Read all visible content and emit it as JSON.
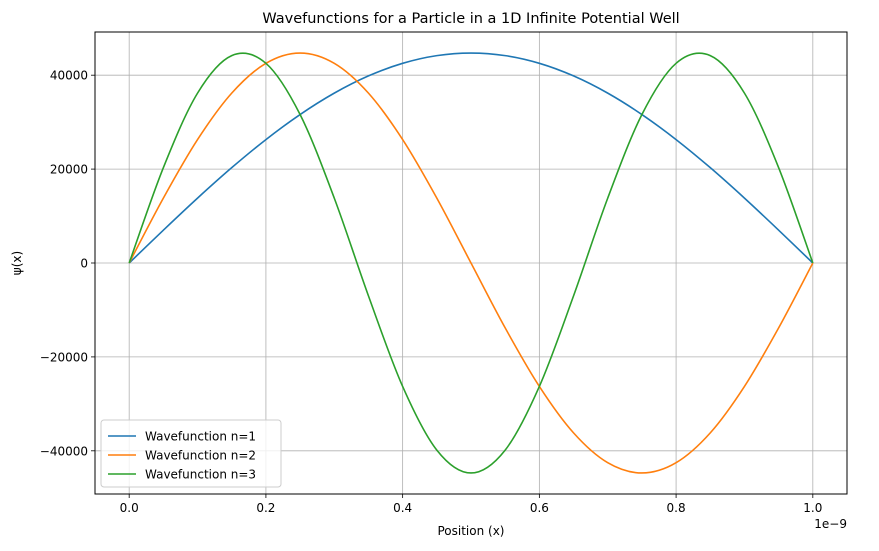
{
  "chart_data": {
    "type": "line",
    "title": "Wavefunctions for a Particle in a 1D Infinite Potential Well",
    "xlabel": "Position (x)",
    "ylabel": "ψ(x)",
    "x_offset_label": "1e−9",
    "x_scale": 1e-09,
    "xlim": [
      -0.05,
      1.05
    ],
    "ylim": [
      -49200,
      49200
    ],
    "x_ticks": [
      0.0,
      0.2,
      0.4,
      0.6,
      0.8,
      1.0
    ],
    "x_tick_labels": [
      "0.0",
      "0.2",
      "0.4",
      "0.6",
      "0.8",
      "1.0"
    ],
    "y_ticks": [
      -40000,
      -20000,
      0,
      20000,
      40000
    ],
    "y_tick_labels": [
      "−40000",
      "−20000",
      "0",
      "20000",
      "40000"
    ],
    "grid": true,
    "legend_position": "lower-left",
    "amplitude": 44721.36,
    "x": [
      0.0,
      0.05,
      0.1,
      0.15,
      0.2,
      0.25,
      0.3,
      0.35,
      0.4,
      0.45,
      0.5,
      0.55,
      0.6,
      0.65,
      0.7,
      0.75,
      0.8,
      0.85,
      0.9,
      0.95,
      1.0
    ],
    "series": [
      {
        "name": "Wavefunction n=1",
        "color": "#1f77b4",
        "values": [
          0,
          6996,
          13820,
          20303,
          26287,
          31623,
          36180,
          39847,
          42533,
          44171,
          44721,
          44171,
          42533,
          39847,
          36180,
          31623,
          26287,
          20303,
          13820,
          6996,
          0
        ]
      },
      {
        "name": "Wavefunction n=2",
        "color": "#ff7f0e",
        "values": [
          0,
          13820,
          26287,
          36180,
          42533,
          44721,
          42533,
          36180,
          26287,
          13820,
          0,
          -13820,
          -26287,
          -36180,
          -42533,
          -44721,
          -42533,
          -36180,
          -26287,
          -13820,
          0
        ]
      },
      {
        "name": "Wavefunction n=3",
        "color": "#2ca02c",
        "values": [
          0,
          20303,
          36180,
          44171,
          42533,
          31623,
          13820,
          -6996,
          -26287,
          -39847,
          -44721,
          -39847,
          -26287,
          -6996,
          13820,
          31623,
          42533,
          44171,
          36180,
          20303,
          0
        ]
      }
    ]
  }
}
